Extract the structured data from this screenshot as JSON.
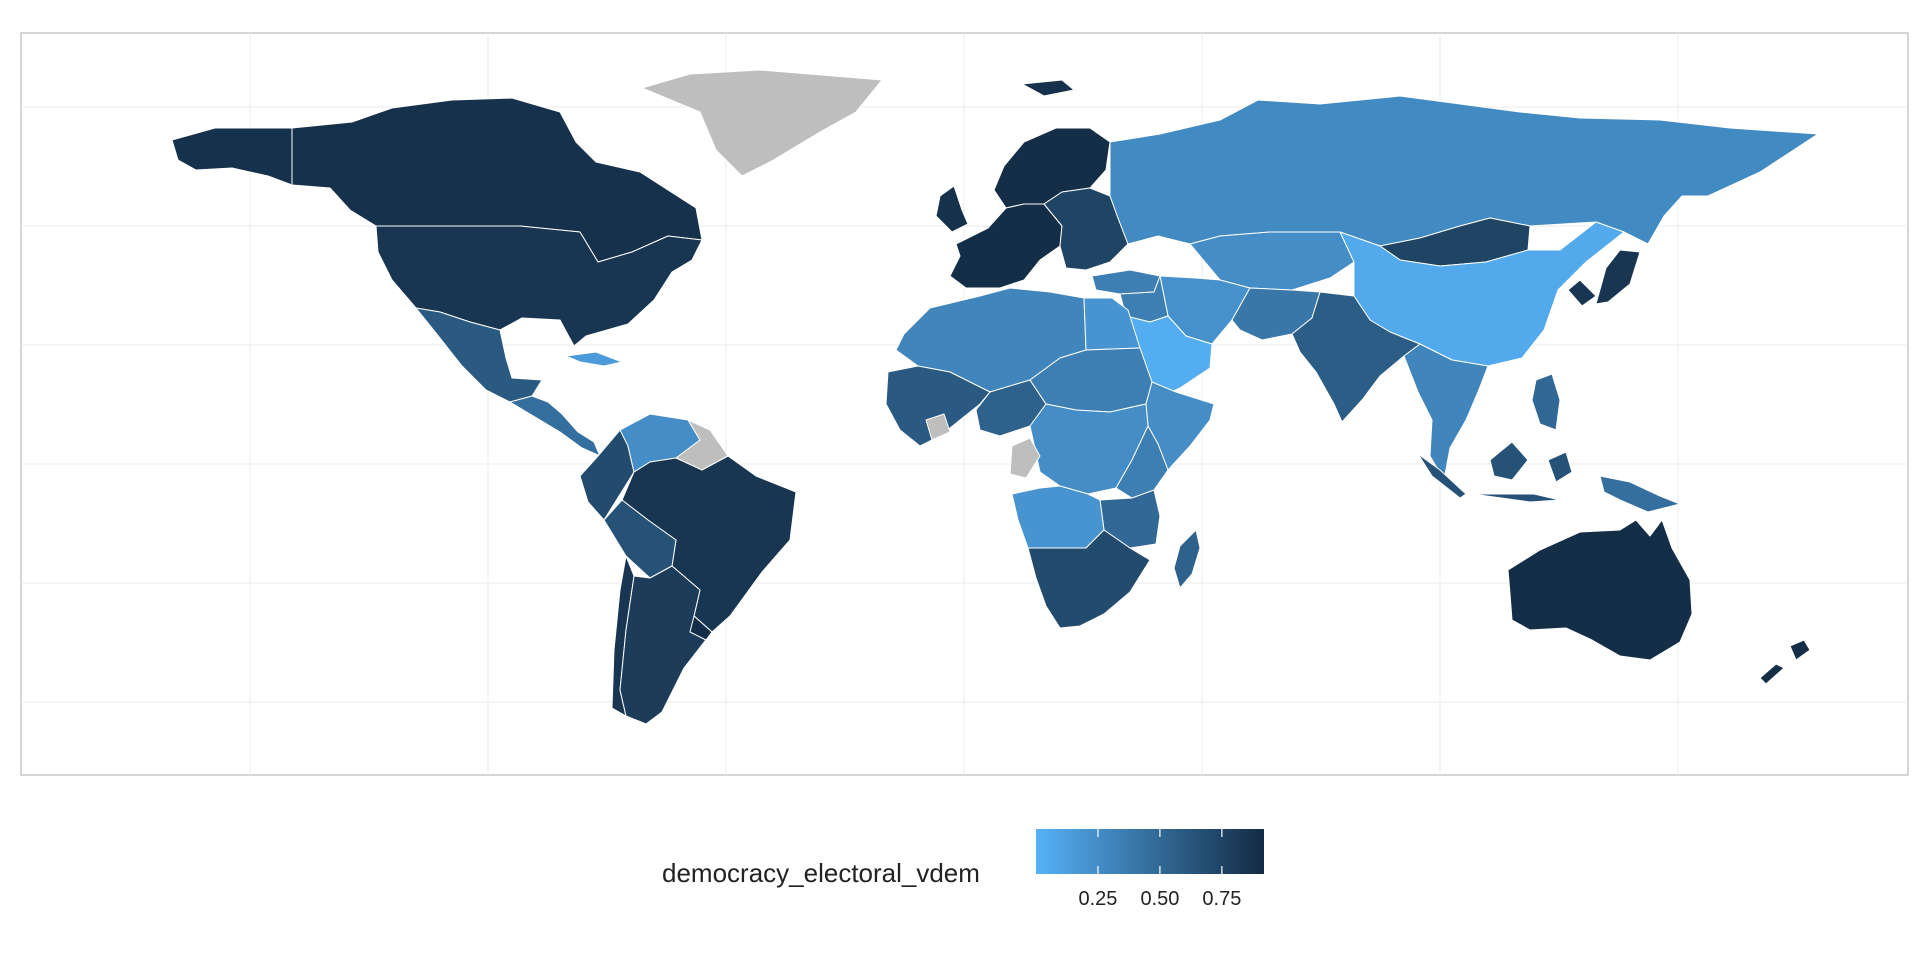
{
  "legend": {
    "title": "democracy_electoral_vdem",
    "low_color": "#56b1f7",
    "high_color": "#132b43",
    "missing_color": "#bebebe",
    "range": [
      0.0,
      0.92
    ],
    "ticks": [
      {
        "value": 0.25,
        "label": "0.25"
      },
      {
        "value": 0.5,
        "label": "0.50"
      },
      {
        "value": 0.75,
        "label": "0.75"
      }
    ]
  },
  "map": {
    "projection": "equirectangular",
    "lon_range": [
      -180,
      180
    ],
    "lat_range": [
      -60,
      85
    ],
    "grid": true,
    "background": "#ffffff",
    "border_color": "#ffffff",
    "regions": [
      {
        "id": "canada",
        "value": 0.88
      },
      {
        "id": "alaska",
        "value": 0.88
      },
      {
        "id": "usa",
        "value": 0.85
      },
      {
        "id": "greenland",
        "value": null
      },
      {
        "id": "mexico",
        "value": 0.6
      },
      {
        "id": "central-america",
        "value": 0.45
      },
      {
        "id": "cuba",
        "value": 0.15
      },
      {
        "id": "venezuela",
        "value": 0.25
      },
      {
        "id": "guianas",
        "value": null
      },
      {
        "id": "colombia",
        "value": 0.7
      },
      {
        "id": "brazil",
        "value": 0.85
      },
      {
        "id": "bolivia",
        "value": 0.65
      },
      {
        "id": "argentina",
        "value": 0.8
      },
      {
        "id": "uruguay",
        "value": 0.9
      },
      {
        "id": "chile",
        "value": 0.85
      },
      {
        "id": "iceland",
        "value": 0.88
      },
      {
        "id": "uk-ireland",
        "value": 0.88
      },
      {
        "id": "western-europe",
        "value": 0.9
      },
      {
        "id": "scandinavia",
        "value": 0.9
      },
      {
        "id": "eastern-europe",
        "value": 0.75
      },
      {
        "id": "turkey",
        "value": 0.35
      },
      {
        "id": "russia",
        "value": 0.27
      },
      {
        "id": "central-asia",
        "value": 0.25
      },
      {
        "id": "mongolia",
        "value": 0.75
      },
      {
        "id": "china",
        "value": 0.05
      },
      {
        "id": "korea-japan",
        "value": 0.85
      },
      {
        "id": "iran",
        "value": 0.22
      },
      {
        "id": "middle-east",
        "value": 0.35
      },
      {
        "id": "arabian-peninsula",
        "value": 0.03
      },
      {
        "id": "afghanistan-pakistan",
        "value": 0.4
      },
      {
        "id": "india",
        "value": 0.58
      },
      {
        "id": "southeast-asia",
        "value": 0.3
      },
      {
        "id": "indonesia",
        "value": 0.65
      },
      {
        "id": "philippines",
        "value": 0.5
      },
      {
        "id": "png",
        "value": 0.45
      },
      {
        "id": "australia",
        "value": 0.9
      },
      {
        "id": "new-zealand",
        "value": 0.9
      },
      {
        "id": "north-africa",
        "value": 0.3
      },
      {
        "id": "egypt",
        "value": 0.2
      },
      {
        "id": "west-africa",
        "value": 0.6
      },
      {
        "id": "liberia",
        "value": null
      },
      {
        "id": "sahel",
        "value": 0.35
      },
      {
        "id": "nigeria",
        "value": 0.55
      },
      {
        "id": "central-africa",
        "value": 0.25
      },
      {
        "id": "congo",
        "value": null
      },
      {
        "id": "east-africa",
        "value": 0.35
      },
      {
        "id": "horn-of-africa",
        "value": 0.25
      },
      {
        "id": "angola",
        "value": 0.2
      },
      {
        "id": "southern-africa",
        "value": 0.7
      },
      {
        "id": "tanzania",
        "value": 0.5
      },
      {
        "id": "madagascar",
        "value": 0.55
      }
    ]
  }
}
